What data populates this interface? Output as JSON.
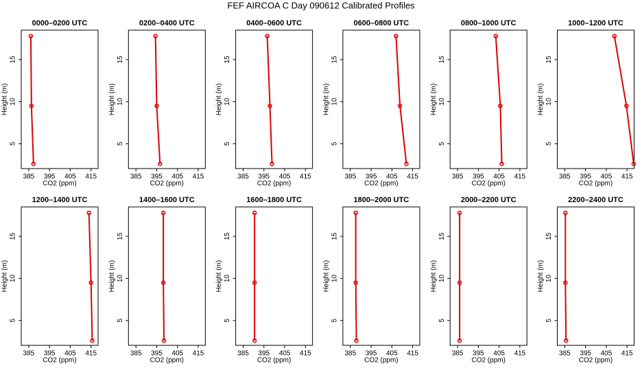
{
  "title": "FEF AIRCOA C  Day 090612  Calibrated Profiles",
  "chart_data": [
    {
      "type": "line",
      "title": "0000–0200 UTC",
      "xlabel": "CO2 (ppm)",
      "ylabel": "Height (m)",
      "color": "#dd0000",
      "x": [
        386,
        386.3,
        387.3
      ],
      "y": [
        17.8,
        9.5,
        2.6
      ],
      "xlim": [
        381.4,
        418.4
      ],
      "ylim": [
        2.05,
        18.5
      ],
      "xticks": [
        385,
        395,
        405,
        415
      ],
      "yticks": [
        5,
        10,
        15
      ]
    },
    {
      "type": "line",
      "title": "0200–0400 UTC",
      "xlabel": "CO2 (ppm)",
      "ylabel": "Height (m)",
      "color": "#dd0000",
      "x": [
        394.4,
        395,
        396.6
      ],
      "y": [
        17.8,
        9.5,
        2.6
      ],
      "xlim": [
        381.4,
        418.4
      ],
      "ylim": [
        2.05,
        18.5
      ],
      "xticks": [
        385,
        395,
        405,
        415
      ],
      "yticks": [
        5,
        10,
        15
      ]
    },
    {
      "type": "line",
      "title": "0400–0600 UTC",
      "xlabel": "CO2 (ppm)",
      "ylabel": "Height (m)",
      "color": "#dd0000",
      "x": [
        396.6,
        397.9,
        398.9
      ],
      "y": [
        17.8,
        9.5,
        2.6
      ],
      "xlim": [
        381.4,
        418.4
      ],
      "ylim": [
        2.05,
        18.5
      ],
      "xticks": [
        385,
        395,
        405,
        415
      ],
      "yticks": [
        5,
        10,
        15
      ]
    },
    {
      "type": "line",
      "title": "0600–0800 UTC",
      "xlabel": "CO2 (ppm)",
      "ylabel": "Height (m)",
      "color": "#dd0000",
      "x": [
        407,
        408.9,
        412
      ],
      "y": [
        17.8,
        9.5,
        2.6
      ],
      "xlim": [
        381.4,
        418.4
      ],
      "ylim": [
        2.05,
        18.5
      ],
      "xticks": [
        385,
        395,
        405,
        415
      ],
      "yticks": [
        5,
        10,
        15
      ]
    },
    {
      "type": "line",
      "title": "0800–1000 UTC",
      "xlabel": "CO2 (ppm)",
      "ylabel": "Height (m)",
      "color": "#dd0000",
      "x": [
        403.4,
        405.6,
        406.3
      ],
      "y": [
        17.8,
        9.5,
        2.6
      ],
      "xlim": [
        381.4,
        418.4
      ],
      "ylim": [
        2.05,
        18.5
      ],
      "xticks": [
        385,
        395,
        405,
        415
      ],
      "yticks": [
        5,
        10,
        15
      ]
    },
    {
      "type": "line",
      "title": "1000–1200 UTC",
      "xlabel": "CO2 (ppm)",
      "ylabel": "Height (m)",
      "color": "#dd0000",
      "x": [
        408.9,
        414.7,
        418.2
      ],
      "y": [
        17.8,
        9.5,
        2.6
      ],
      "xlim": [
        381.4,
        418.4
      ],
      "ylim": [
        2.05,
        18.5
      ],
      "xticks": [
        385,
        395,
        405,
        415
      ],
      "yticks": [
        5,
        10,
        15
      ]
    },
    {
      "type": "line",
      "title": "1200–1400 UTC",
      "xlabel": "CO2 (ppm)",
      "ylabel": "Height (m)",
      "color": "#dd0000",
      "x": [
        414,
        415,
        415.6
      ],
      "y": [
        17.8,
        9.5,
        2.6
      ],
      "xlim": [
        381.4,
        418.4
      ],
      "ylim": [
        2.05,
        18.5
      ],
      "xticks": [
        385,
        395,
        405,
        415
      ],
      "yticks": [
        5,
        10,
        15
      ]
    },
    {
      "type": "line",
      "title": "1400–1600 UTC",
      "xlabel": "CO2 (ppm)",
      "ylabel": "Height (m)",
      "color": "#dd0000",
      "x": [
        398.2,
        398.2,
        398.5
      ],
      "y": [
        17.8,
        9.5,
        2.6
      ],
      "xlim": [
        381.4,
        418.4
      ],
      "ylim": [
        2.05,
        18.5
      ],
      "xticks": [
        385,
        395,
        405,
        415
      ],
      "yticks": [
        5,
        10,
        15
      ]
    },
    {
      "type": "line",
      "title": "1600–1800 UTC",
      "xlabel": "CO2 (ppm)",
      "ylabel": "Height (m)",
      "color": "#dd0000",
      "x": [
        390.5,
        390.5,
        390.5
      ],
      "y": [
        17.8,
        9.5,
        2.6
      ],
      "xlim": [
        381.4,
        418.4
      ],
      "ylim": [
        2.05,
        18.5
      ],
      "xticks": [
        385,
        395,
        405,
        415
      ],
      "yticks": [
        5,
        10,
        15
      ]
    },
    {
      "type": "line",
      "title": "1800–2000 UTC",
      "xlabel": "CO2 (ppm)",
      "ylabel": "Height (m)",
      "color": "#dd0000",
      "x": [
        387.6,
        387.6,
        387.9
      ],
      "y": [
        17.8,
        9.5,
        2.6
      ],
      "xlim": [
        381.4,
        418.4
      ],
      "ylim": [
        2.05,
        18.5
      ],
      "xticks": [
        385,
        395,
        405,
        415
      ],
      "yticks": [
        5,
        10,
        15
      ]
    },
    {
      "type": "line",
      "title": "2000–2200 UTC",
      "xlabel": "CO2 (ppm)",
      "ylabel": "Height (m)",
      "color": "#dd0000",
      "x": [
        386,
        386,
        386
      ],
      "y": [
        17.8,
        9.5,
        2.6
      ],
      "xlim": [
        381.4,
        418.4
      ],
      "ylim": [
        2.05,
        18.5
      ],
      "xticks": [
        385,
        395,
        405,
        415
      ],
      "yticks": [
        5,
        10,
        15
      ]
    },
    {
      "type": "line",
      "title": "2200–2400 UTC",
      "xlabel": "CO2 (ppm)",
      "ylabel": "Height (m)",
      "color": "#dd0000",
      "x": [
        385.3,
        385.3,
        385.6
      ],
      "y": [
        17.8,
        9.5,
        2.6
      ],
      "xlim": [
        381.4,
        418.4
      ],
      "ylim": [
        2.05,
        18.5
      ],
      "xticks": [
        385,
        395,
        405,
        415
      ],
      "yticks": [
        5,
        10,
        15
      ]
    }
  ]
}
